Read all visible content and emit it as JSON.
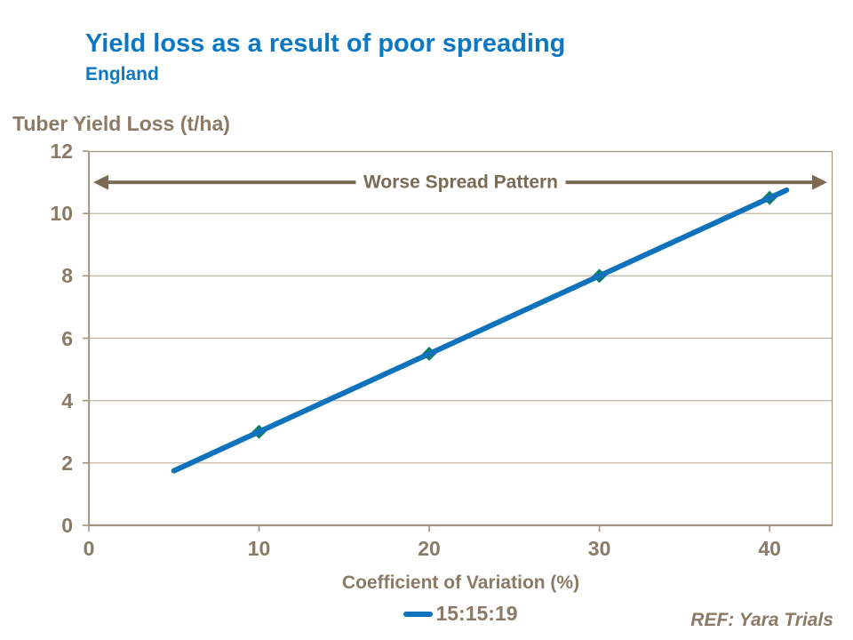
{
  "header": {
    "title": "Yield loss as a result of poor spreading",
    "subtitle": "England"
  },
  "legend": {
    "label": "15:15:19"
  },
  "footer": {
    "ref": "REF: Yara Trials"
  },
  "colors": {
    "title_blue": "#0d78c2",
    "text_brown": "#8a7a66",
    "arrow_brown": "#7b6b54",
    "grid_tan": "#bbae9e",
    "frame_tan": "#a39481",
    "line_blue": "#0e73bc",
    "marker_teal": "#117c64"
  },
  "chart_data": {
    "type": "line",
    "title": "Yield loss as a result of poor spreading",
    "subtitle": "England",
    "ylabel": "Tuber Yield Loss (t/ha)",
    "xlabel": "Coefficient of Variation (%)",
    "annotation": "Worse Spread Pattern",
    "xlim": [
      0,
      43.7
    ],
    "ylim": [
      0,
      12
    ],
    "x_ticks": [
      0,
      10,
      20,
      30,
      40
    ],
    "y_ticks": [
      0,
      2,
      4,
      6,
      8,
      10,
      12
    ],
    "grid": "horizontal",
    "legend_position": "bottom",
    "series": [
      {
        "name": "15:15:19",
        "x": [
          5,
          10,
          20,
          30,
          40,
          41
        ],
        "y": [
          1.75,
          3,
          5.5,
          8,
          10.5,
          10.75
        ],
        "markers": [
          [
            10,
            3
          ],
          [
            20,
            5.5
          ],
          [
            30,
            8
          ],
          [
            40,
            10.5
          ]
        ]
      }
    ]
  }
}
